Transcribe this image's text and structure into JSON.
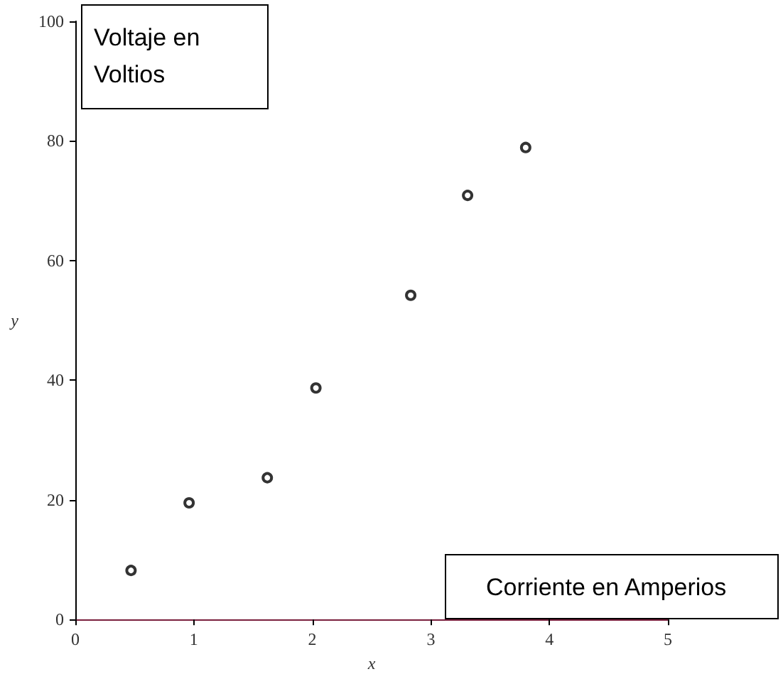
{
  "chart_data": {
    "type": "scatter",
    "xlabel": "x",
    "ylabel": "y",
    "x": [
      0.47,
      0.96,
      1.62,
      2.03,
      2.83,
      3.31,
      3.8
    ],
    "values": [
      8.2,
      19.5,
      23.7,
      38.7,
      54.2,
      70.9,
      78.9
    ],
    "color": "#000000",
    "marker": "circle",
    "xlim": [
      0,
      5
    ],
    "xticks": [
      0,
      1,
      2,
      3,
      4,
      5
    ],
    "ylim": [
      0,
      100
    ],
    "yticks": [
      0,
      20,
      40,
      60,
      80,
      100
    ],
    "grid": false,
    "annotations": [
      "Voltaje en Voltios",
      "Corriente en Amperios"
    ]
  }
}
